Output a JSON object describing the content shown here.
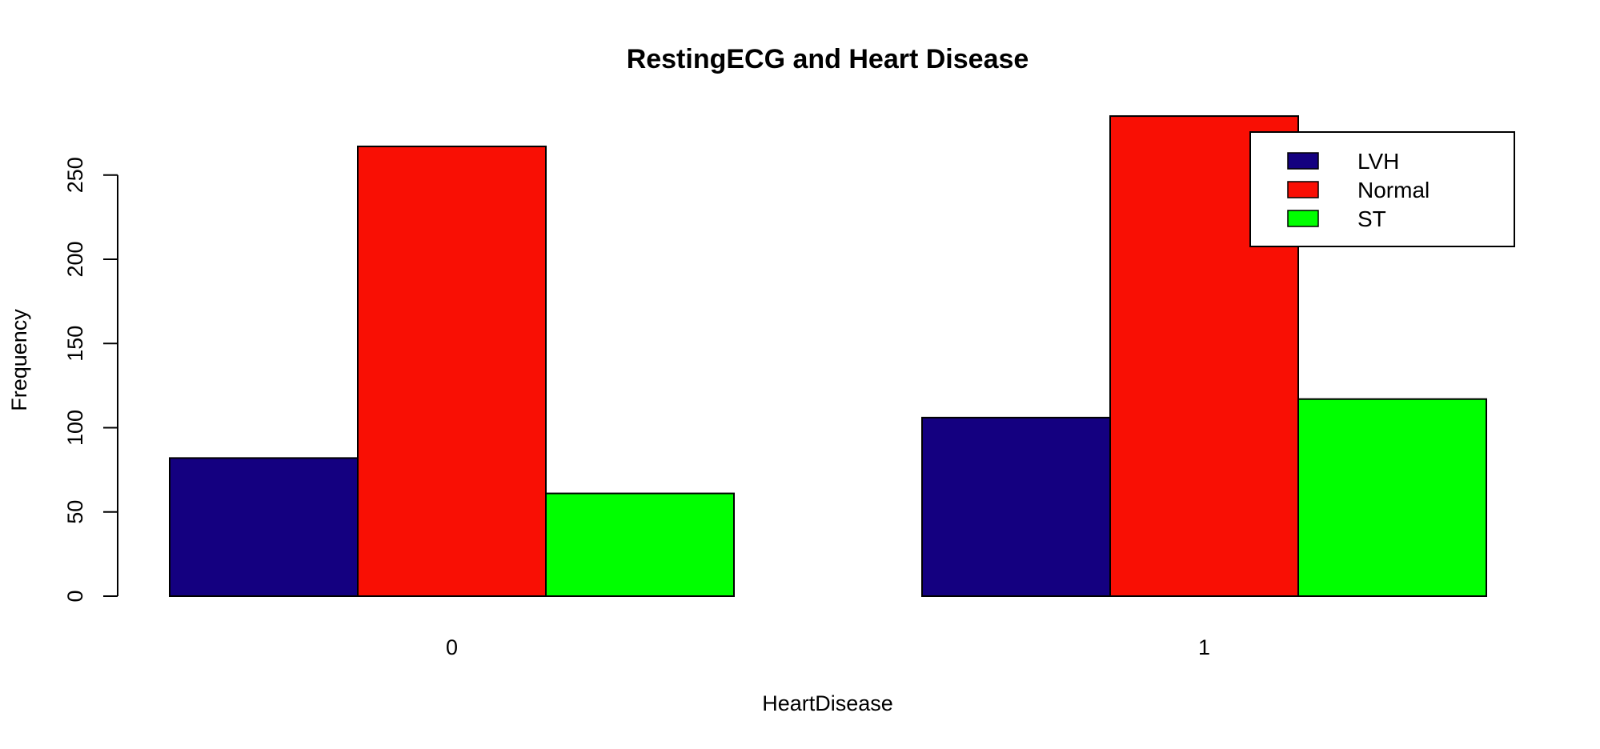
{
  "chart_data": {
    "type": "bar",
    "title": "RestingECG and Heart Disease",
    "xlabel": "HeartDisease",
    "ylabel": "Frequency",
    "categories": [
      "0",
      "1"
    ],
    "series": [
      {
        "name": "LVH",
        "values": [
          82,
          106
        ],
        "color": "#140080"
      },
      {
        "name": "Normal",
        "values": [
          267,
          285
        ],
        "color": "#f90f04"
      },
      {
        "name": "ST",
        "values": [
          61,
          117
        ],
        "color": "#00ff00"
      }
    ],
    "yticks": [
      0,
      50,
      100,
      150,
      200,
      250
    ],
    "ylim": [
      0,
      285
    ],
    "legend": {
      "position": "top-right"
    },
    "grid": false
  }
}
